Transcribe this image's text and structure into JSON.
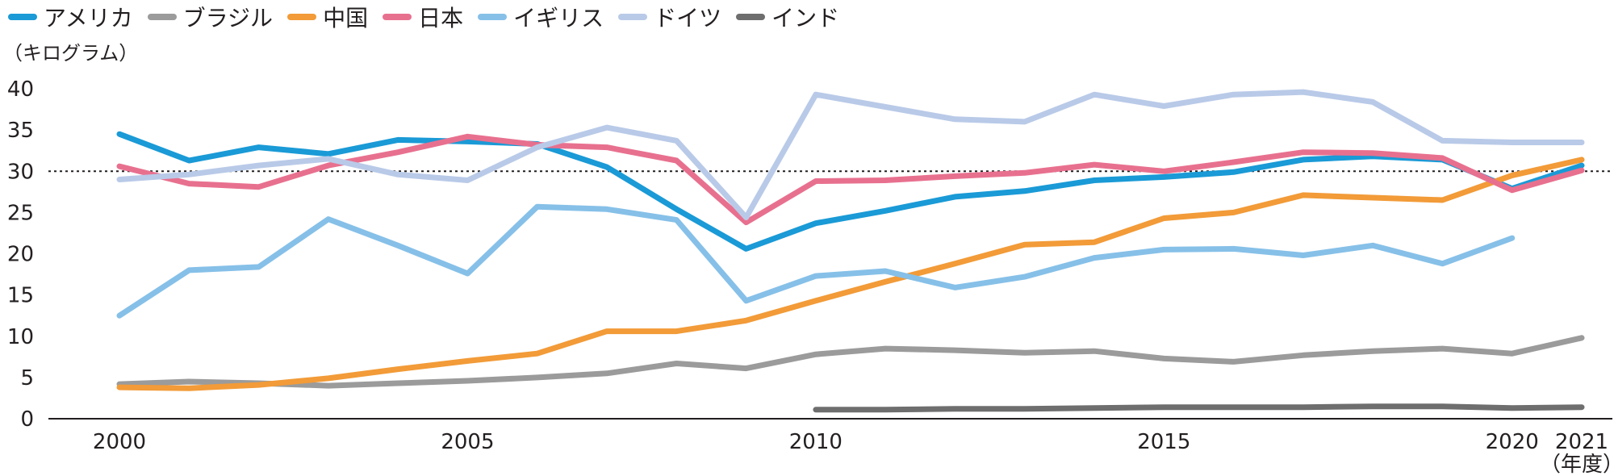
{
  "legend_title": "",
  "unit_label": "（キログラム）",
  "year_suffix": "（年度）",
  "chart_data": {
    "type": "line",
    "title": "",
    "xlabel": "",
    "ylabel": "（キログラム）",
    "ylim": [
      0,
      40
    ],
    "yticks": [
      0,
      5,
      10,
      15,
      20,
      25,
      30,
      35,
      40
    ],
    "xlim": [
      2000,
      2021
    ],
    "xticks": [
      2000,
      2005,
      2010,
      2015,
      2020,
      2021
    ],
    "reference_line": 30,
    "grid": false,
    "legend_position": "top-left",
    "x": [
      2000,
      2001,
      2002,
      2003,
      2004,
      2005,
      2006,
      2007,
      2008,
      2009,
      2010,
      2011,
      2012,
      2013,
      2014,
      2015,
      2016,
      2017,
      2018,
      2019,
      2020,
      2021
    ],
    "series": [
      {
        "name": "アメリカ",
        "color": "#1a9ad6",
        "values": [
          34.5,
          31.3,
          32.9,
          32.1,
          33.8,
          33.6,
          33.3,
          30.5,
          25.4,
          20.6,
          23.7,
          25.2,
          26.9,
          27.6,
          28.9,
          29.3,
          29.9,
          31.4,
          31.8,
          31.4,
          27.9,
          30.7
        ]
      },
      {
        "name": "ブラジル",
        "color": "#9b9b9b",
        "values": [
          4.2,
          4.5,
          4.3,
          4.0,
          4.3,
          4.6,
          5.0,
          5.5,
          6.7,
          6.1,
          7.8,
          8.5,
          8.3,
          8.0,
          8.2,
          7.3,
          6.9,
          7.7,
          8.2,
          8.5,
          7.9,
          9.8
        ]
      },
      {
        "name": "中国",
        "color": "#f29b38",
        "values": [
          3.8,
          3.7,
          4.1,
          4.9,
          6.0,
          7.0,
          7.9,
          10.6,
          10.6,
          11.9,
          14.3,
          16.6,
          18.8,
          21.1,
          21.4,
          24.3,
          25.0,
          27.1,
          26.8,
          26.5,
          29.5,
          31.4
        ]
      },
      {
        "name": "日本",
        "color": "#e8708f",
        "values": [
          30.6,
          28.5,
          28.1,
          30.7,
          32.3,
          34.2,
          33.2,
          32.9,
          31.3,
          23.8,
          28.8,
          28.9,
          29.4,
          29.8,
          30.8,
          30.0,
          31.1,
          32.3,
          32.2,
          31.6,
          27.7,
          30.1
        ]
      },
      {
        "name": "イギリス",
        "color": "#86c0e8",
        "values": [
          12.5,
          18.0,
          18.4,
          24.2,
          21.0,
          17.6,
          25.7,
          25.4,
          24.1,
          14.3,
          17.3,
          17.9,
          15.9,
          17.2,
          19.5,
          20.5,
          20.6,
          19.8,
          21.0,
          18.8,
          21.9,
          null
        ]
      },
      {
        "name": "ドイツ",
        "color": "#b9cae8",
        "values": [
          29.0,
          29.6,
          30.7,
          31.5,
          29.6,
          28.9,
          32.9,
          35.3,
          33.7,
          24.4,
          39.3,
          37.8,
          36.3,
          36.0,
          39.3,
          37.9,
          39.3,
          39.6,
          38.4,
          33.7,
          33.5,
          33.5
        ]
      },
      {
        "name": "インド",
        "color": "#6e6e6e",
        "values": [
          null,
          null,
          null,
          null,
          null,
          null,
          null,
          null,
          null,
          null,
          1.1,
          1.1,
          1.2,
          1.2,
          1.3,
          1.4,
          1.4,
          1.4,
          1.5,
          1.5,
          1.3,
          1.4
        ]
      }
    ]
  }
}
